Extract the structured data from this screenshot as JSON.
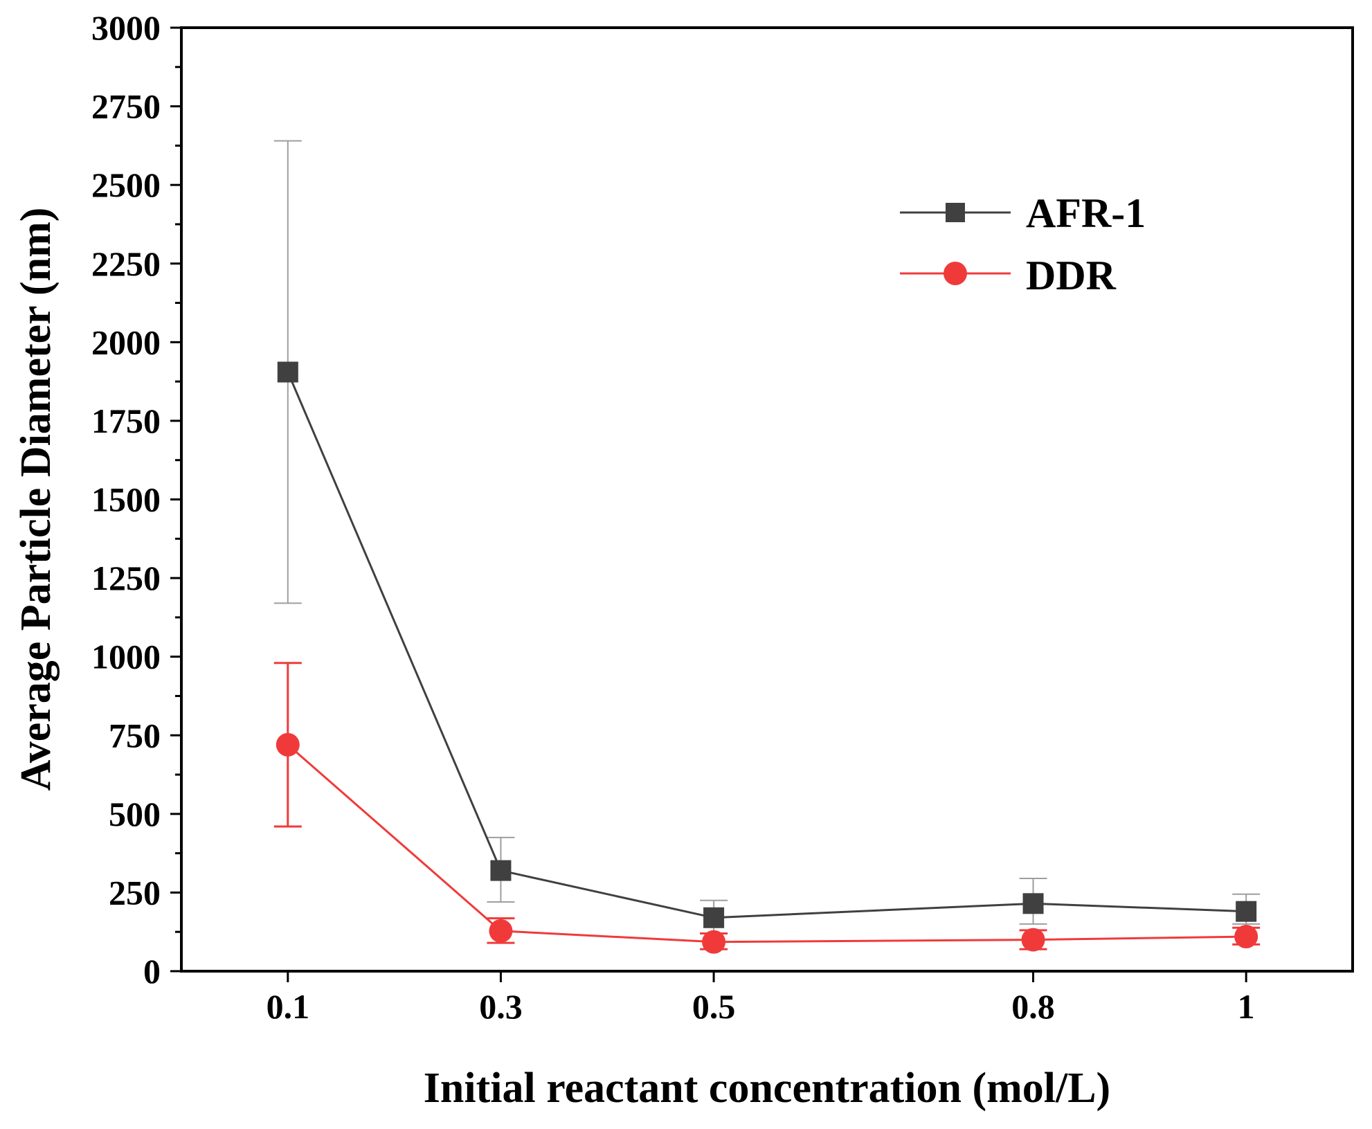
{
  "chart_data": {
    "type": "line",
    "title": "",
    "xlabel": "Initial reactant concentration (mol/L)",
    "ylabel": "Average Particle Diameter (nm)",
    "x": [
      0.1,
      0.3,
      0.5,
      0.8,
      1
    ],
    "x_tick_labels": [
      "0.1",
      "0.3",
      "0.5",
      "0.8",
      "1"
    ],
    "xlim": [
      0.0,
      1.1
    ],
    "ylim": [
      0,
      3000
    ],
    "y_ticks": [
      0,
      250,
      500,
      750,
      1000,
      1250,
      1500,
      1750,
      2000,
      2250,
      2500,
      2750,
      3000
    ],
    "y_tick_labels": [
      "0",
      "250",
      "500",
      "750",
      "1000",
      "1250",
      "1500",
      "1750",
      "2000",
      "2250",
      "2500",
      "2750",
      "3000"
    ],
    "grid": false,
    "legend_position": "top-right",
    "series": [
      {
        "name": "AFR-1",
        "marker": "square",
        "color": "#404040",
        "error_color": "#9e9e9e",
        "values": [
          1905,
          320,
          170,
          215,
          190
        ],
        "error_low": [
          1170,
          220,
          120,
          150,
          150
        ],
        "error_high": [
          2640,
          425,
          225,
          295,
          245
        ]
      },
      {
        "name": "DDR",
        "marker": "circle",
        "color": "#f03a3a",
        "error_color": "#f03a3a",
        "values": [
          720,
          128,
          93,
          100,
          110
        ],
        "error_low": [
          460,
          90,
          70,
          70,
          85
        ],
        "error_high": [
          980,
          168,
          120,
          130,
          138
        ]
      }
    ]
  }
}
